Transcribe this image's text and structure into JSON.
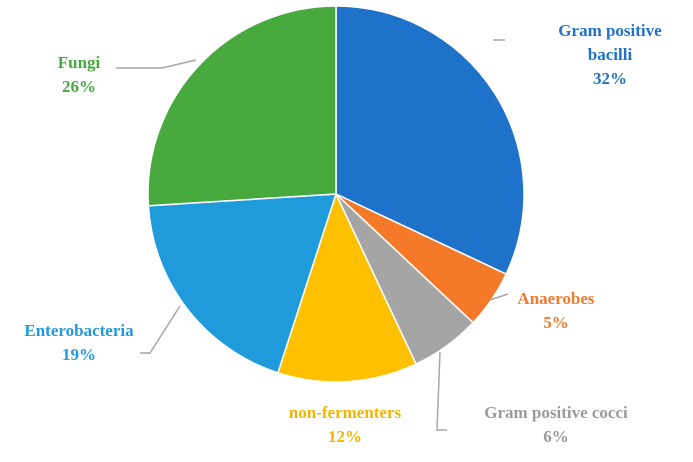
{
  "chart_data": {
    "type": "pie",
    "title": "",
    "start_angle_deg": 0,
    "direction": "clockwise",
    "slices": [
      {
        "label": "Gram positive bacilli",
        "label_lines": [
          "Gram positive",
          "bacilli"
        ],
        "value": 32,
        "value_label": "32%",
        "color": "#1F72C9",
        "label_color": "#1F72C9"
      },
      {
        "label": "Anaerobes",
        "label_lines": [
          "Anaerobes"
        ],
        "value": 5,
        "value_label": "5%",
        "color": "#F47A2A",
        "label_color": "#F47A2A"
      },
      {
        "label": "Gram positive cocci",
        "label_lines": [
          "Gram positive cocci"
        ],
        "value": 6,
        "value_label": "6%",
        "color": "#A5A5A5",
        "label_color": "#9A9A9A"
      },
      {
        "label": "non-fermenters",
        "label_lines": [
          "non-fermenters"
        ],
        "value": 12,
        "value_label": "12%",
        "color": "#FFC000",
        "label_color": "#F2B500"
      },
      {
        "label": "Enterobacteria",
        "label_lines": [
          "Enterobacteria"
        ],
        "value": 19,
        "value_label": "19%",
        "color": "#1F9BDB",
        "label_color": "#1F9BDB"
      },
      {
        "label": "Fungi",
        "label_lines": [
          "Fungi"
        ],
        "value": 26,
        "value_label": "26%",
        "color": "#48A93F",
        "label_color": "#48A93F"
      }
    ],
    "leader_line_color": "#A6A6A6"
  }
}
